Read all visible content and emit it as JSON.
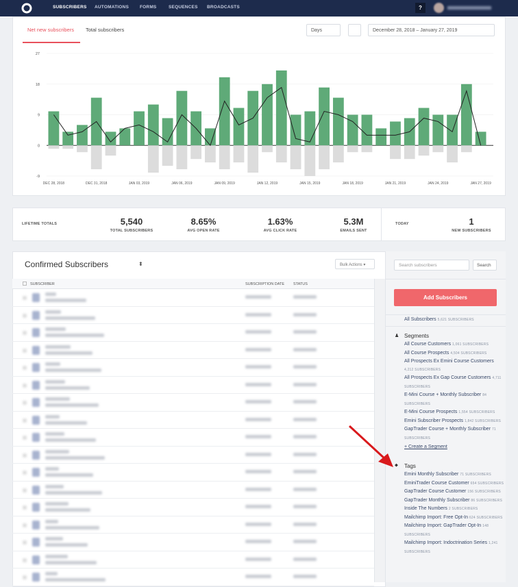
{
  "nav": {
    "items": [
      "SUBSCRIBERS",
      "AUTOMATIONS",
      "FORMS",
      "SEQUENCES",
      "BROADCASTS"
    ],
    "help": "?"
  },
  "chart_tabs": [
    "Net new subscribers",
    "Total subscribers"
  ],
  "filters": {
    "interval": "Days",
    "date_range": "December 28, 2018 – January 27, 2019"
  },
  "chart_data": {
    "type": "bar",
    "categories": [
      "DEC 28, 2018",
      null,
      null,
      "DEC 31, 2018",
      null,
      null,
      "JAN 03, 2019",
      null,
      null,
      "JAN 06, 2019",
      null,
      null,
      "JAN 09, 2019",
      null,
      null,
      "JAN 12, 2019",
      null,
      null,
      "JAN 15, 2019",
      null,
      null,
      "JAN 18, 2019",
      null,
      null,
      "JAN 21, 2019",
      null,
      null,
      "JAN 24, 2019",
      null,
      null,
      "JAN 27, 2019"
    ],
    "series": [
      {
        "type": "bar",
        "color": "#5faa78",
        "values": [
          10,
          4,
          6,
          14,
          4,
          5,
          10,
          12,
          8,
          16,
          10,
          5,
          20,
          11,
          16,
          18,
          22,
          9,
          10,
          17,
          14,
          9,
          9,
          5,
          7,
          8,
          11,
          9,
          9,
          18,
          4
        ]
      },
      {
        "type": "bar",
        "color": "#dcdcdc",
        "values": [
          -1,
          -1,
          -2,
          -7,
          -3,
          0,
          0,
          -8,
          -6,
          -7,
          -4,
          -5,
          -7,
          -5,
          -8,
          -2,
          -5,
          -7,
          -9,
          -7,
          -5,
          -2,
          -2,
          0,
          -4,
          -4,
          -3,
          -2,
          -5,
          -2,
          0
        ]
      },
      {
        "type": "line",
        "color": "#222222",
        "values": [
          9,
          3,
          4,
          7,
          1,
          5,
          6,
          4,
          1,
          9,
          5,
          0,
          13,
          6,
          8,
          14,
          17,
          2,
          1,
          10,
          9,
          7,
          3,
          3,
          3,
          4,
          8,
          7,
          4,
          16,
          0
        ]
      }
    ],
    "ylim": [
      -9,
      27
    ],
    "yticks": [
      -9,
      0,
      9,
      18,
      27
    ],
    "grid": true
  },
  "stats": {
    "lifetime_label": "LIFETIME TOTALS",
    "items": [
      {
        "value": "5,540",
        "label": "TOTAL SUBSCRIBERS"
      },
      {
        "value": "8.65%",
        "label": "AVG OPEN RATE"
      },
      {
        "value": "1.63%",
        "label": "AVG CLICK RATE"
      },
      {
        "value": "5.3M",
        "label": "EMAILS SENT"
      }
    ],
    "today_label": "TODAY",
    "today": {
      "value": "1",
      "label": "NEW SUBSCRIBERS"
    }
  },
  "table": {
    "title": "Confirmed Subscribers",
    "bulk_actions": "Bulk Actions",
    "columns": [
      "SUBSCRIBER",
      "SUBSCRIPTION DATE",
      "STATUS"
    ]
  },
  "sidebar": {
    "search_placeholder": "Search subscribers",
    "search_button": "Search",
    "add_button": "Add Subscribers",
    "all": {
      "label": "All Subscribers",
      "count": "5,621 SUBSCRIBERS"
    },
    "segments": {
      "title": "Segments",
      "items": [
        {
          "label": "All Course Customers",
          "count": "1,061 SUBSCRIBERS"
        },
        {
          "label": "All Course Prospects",
          "count": "4,504 SUBSCRIBERS"
        },
        {
          "label": "All Prospects Ex Emini Course Customers",
          "count": "4,212 SUBSCRIBERS"
        },
        {
          "label": "All Prospects Ex Gap Course Customers",
          "count": "4,711 SUBSCRIBERS"
        },
        {
          "label": "E-Mini Course + Monthly Subscriber",
          "count": "84 SUBSCRIBERS"
        },
        {
          "label": "E-Mini Course Prospects",
          "count": "1,554 SUBSCRIBERS"
        },
        {
          "label": "Emini Subscriber Prospects",
          "count": "1,842 SUBSCRIBERS"
        },
        {
          "label": "GapTrader Course + Monthly Subscriber",
          "count": "71 SUBSCRIBERS"
        }
      ],
      "create": "+ Create a Segment"
    },
    "tags": {
      "title": "Tags",
      "items": [
        {
          "label": "Emini Monthly Subscriber",
          "count": "71 SUBSCRIBERS"
        },
        {
          "label": "EminiTrader Course Customer",
          "count": "654 SUBSCRIBERS"
        },
        {
          "label": "GapTrader Course Customer",
          "count": "156 SUBSCRIBERS"
        },
        {
          "label": "GapTrader Monthly Subscriber",
          "count": "86 SUBSCRIBERS"
        },
        {
          "label": "Inside The Numbers",
          "count": "2 SUBSCRIBERS"
        },
        {
          "label": "Mailchimp Import: Free Opt-In",
          "count": "624 SUBSCRIBERS"
        },
        {
          "label": "Mailchimp Import: GapTrader Opt-In",
          "count": "148 SUBSCRIBERS"
        },
        {
          "label": "Mailchimp Import: Indoctrination Series",
          "count": "1,241 SUBSCRIBERS"
        }
      ]
    }
  }
}
